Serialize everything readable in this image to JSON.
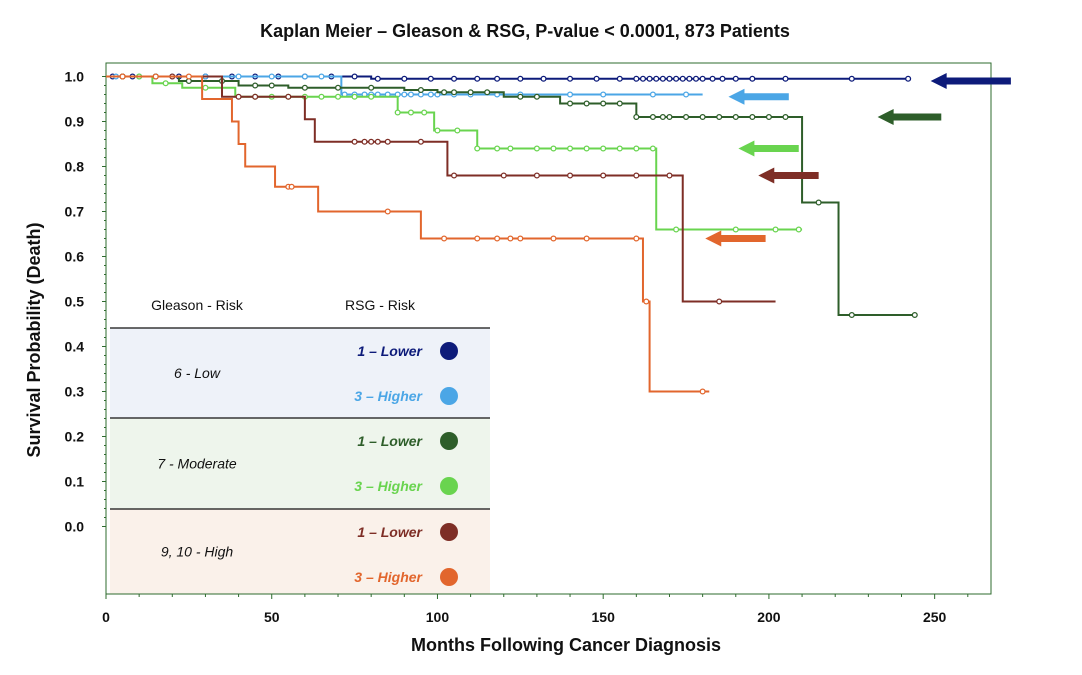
{
  "chart_data": {
    "type": "line",
    "title": "Kaplan Meier – Gleason & RSG, P-value < 0.0001, 873 Patients",
    "xlabel": "Months Following Cancer Diagnosis",
    "ylabel": "Survival Probability (Death)",
    "xlim": [
      0,
      267
    ],
    "ylim": [
      -0.15,
      1.03
    ],
    "x_ticks": [
      "0",
      "50",
      "100",
      "150",
      "200",
      "250"
    ],
    "x_tick_values": [
      0,
      50,
      100,
      150,
      200,
      250
    ],
    "y_ticks": [
      "0.0",
      "0.1",
      "0.2",
      "0.3",
      "0.4",
      "0.5",
      "0.6",
      "0.7",
      "0.8",
      "0.9",
      "1.0"
    ],
    "y_tick_values": [
      0.0,
      0.1,
      0.2,
      0.3,
      0.4,
      0.5,
      0.6,
      0.7,
      0.8,
      0.9,
      1.0
    ],
    "grid": false,
    "legend": {
      "placement": "bottom-left",
      "header_gleason": "Gleason - Risk",
      "header_rsg": "RSG - Risk",
      "groups": [
        {
          "label": "6 - Low",
          "bg": "#eef2f9",
          "entries": [
            {
              "label": "1 – Lower",
              "color": "#0d1b7a",
              "series": 0
            },
            {
              "label": "3 – Higher",
              "color": "#4ba6e6",
              "series": 1
            }
          ]
        },
        {
          "label": "7 - Moderate",
          "bg": "#eef5ec",
          "entries": [
            {
              "label": "1 – Lower",
              "color": "#2e5e2a",
              "series": 2
            },
            {
              "label": "3 – Higher",
              "color": "#69d44f",
              "series": 3
            }
          ]
        },
        {
          "label": "9, 10 - High",
          "bg": "#faf1ea",
          "entries": [
            {
              "label": "1 – Lower",
              "color": "#7e2e26",
              "series": 4
            },
            {
              "label": "3 – Higher",
              "color": "#e2662d",
              "series": 5
            }
          ]
        }
      ]
    },
    "series": [
      {
        "color": "#0d1b7a",
        "steps": [
          [
            0,
            1.0
          ],
          [
            80,
            0.995
          ],
          [
            242,
            0.995
          ]
        ],
        "censored": [
          2,
          8,
          15,
          22,
          30,
          38,
          45,
          52,
          60,
          68,
          75,
          82,
          90,
          98,
          105,
          112,
          118,
          125,
          132,
          140,
          148,
          155,
          160,
          162,
          164,
          166,
          168,
          170,
          172,
          174,
          176,
          178,
          180,
          183,
          186,
          190,
          195,
          205,
          225,
          242
        ],
        "arrow": {
          "x": 250,
          "y": 0.99,
          "len": 23,
          "dir": "left"
        }
      },
      {
        "color": "#4ba6e6",
        "steps": [
          [
            0,
            1.0
          ],
          [
            71,
            0.96
          ],
          [
            180,
            0.96
          ]
        ],
        "censored": [
          3,
          10,
          20,
          30,
          40,
          50,
          60,
          65,
          72,
          75,
          78,
          80,
          82,
          85,
          88,
          90,
          92,
          95,
          98,
          100,
          105,
          110,
          118,
          125,
          140,
          150,
          165,
          175
        ],
        "arrow": {
          "x": 189,
          "y": 0.955,
          "len": 17,
          "dir": "left"
        }
      },
      {
        "color": "#2e5e2a",
        "steps": [
          [
            0,
            1.0
          ],
          [
            22,
            0.99
          ],
          [
            40,
            0.98
          ],
          [
            55,
            0.975
          ],
          [
            90,
            0.97
          ],
          [
            100,
            0.965
          ],
          [
            120,
            0.955
          ],
          [
            137,
            0.94
          ],
          [
            160,
            0.91
          ],
          [
            210,
            0.72
          ],
          [
            221,
            0.47
          ],
          [
            244,
            0.47
          ]
        ],
        "censored": [
          5,
          15,
          25,
          35,
          45,
          50,
          60,
          70,
          80,
          95,
          102,
          105,
          110,
          115,
          125,
          130,
          140,
          145,
          150,
          155,
          160,
          165,
          168,
          170,
          175,
          180,
          185,
          190,
          195,
          200,
          205,
          215,
          225,
          244
        ],
        "arrow": {
          "x": 234,
          "y": 0.91,
          "len": 18,
          "dir": "left"
        }
      },
      {
        "color": "#69d44f",
        "steps": [
          [
            0,
            1.0
          ],
          [
            14,
            0.985
          ],
          [
            23,
            0.975
          ],
          [
            39,
            0.955
          ],
          [
            88,
            0.92
          ],
          [
            99,
            0.88
          ],
          [
            112,
            0.84
          ],
          [
            166,
            0.66
          ],
          [
            210,
            0.66
          ]
        ],
        "censored": [
          5,
          10,
          18,
          30,
          45,
          50,
          55,
          60,
          65,
          70,
          75,
          80,
          88,
          92,
          96,
          100,
          106,
          112,
          118,
          122,
          130,
          135,
          140,
          145,
          150,
          155,
          160,
          165,
          172,
          190,
          202,
          209
        ],
        "arrow": {
          "x": 192,
          "y": 0.84,
          "len": 17,
          "dir": "left"
        }
      },
      {
        "color": "#7e2e26",
        "steps": [
          [
            0,
            1.0
          ],
          [
            35,
            0.955
          ],
          [
            60,
            0.905
          ],
          [
            63,
            0.855
          ],
          [
            103,
            0.78
          ],
          [
            174,
            0.5
          ],
          [
            202,
            0.5
          ]
        ],
        "censored": [
          5,
          20,
          40,
          45,
          55,
          75,
          78,
          80,
          82,
          85,
          95,
          105,
          120,
          130,
          140,
          150,
          160,
          170,
          185
        ],
        "arrow": {
          "x": 198,
          "y": 0.78,
          "len": 17,
          "dir": "left"
        }
      },
      {
        "color": "#e2662d",
        "steps": [
          [
            0,
            1.0
          ],
          [
            29,
            0.95
          ],
          [
            38,
            0.9
          ],
          [
            40,
            0.85
          ],
          [
            42,
            0.8
          ],
          [
            51,
            0.755
          ],
          [
            64,
            0.7
          ],
          [
            95,
            0.64
          ],
          [
            162,
            0.5
          ],
          [
            164,
            0.3
          ],
          [
            182,
            0.3
          ]
        ],
        "censored": [
          5,
          15,
          25,
          55,
          56,
          85,
          102,
          112,
          118,
          122,
          125,
          135,
          145,
          160,
          163,
          180
        ],
        "arrow": {
          "x": 182,
          "y": 0.64,
          "len": 17,
          "dir": "left"
        }
      }
    ]
  }
}
